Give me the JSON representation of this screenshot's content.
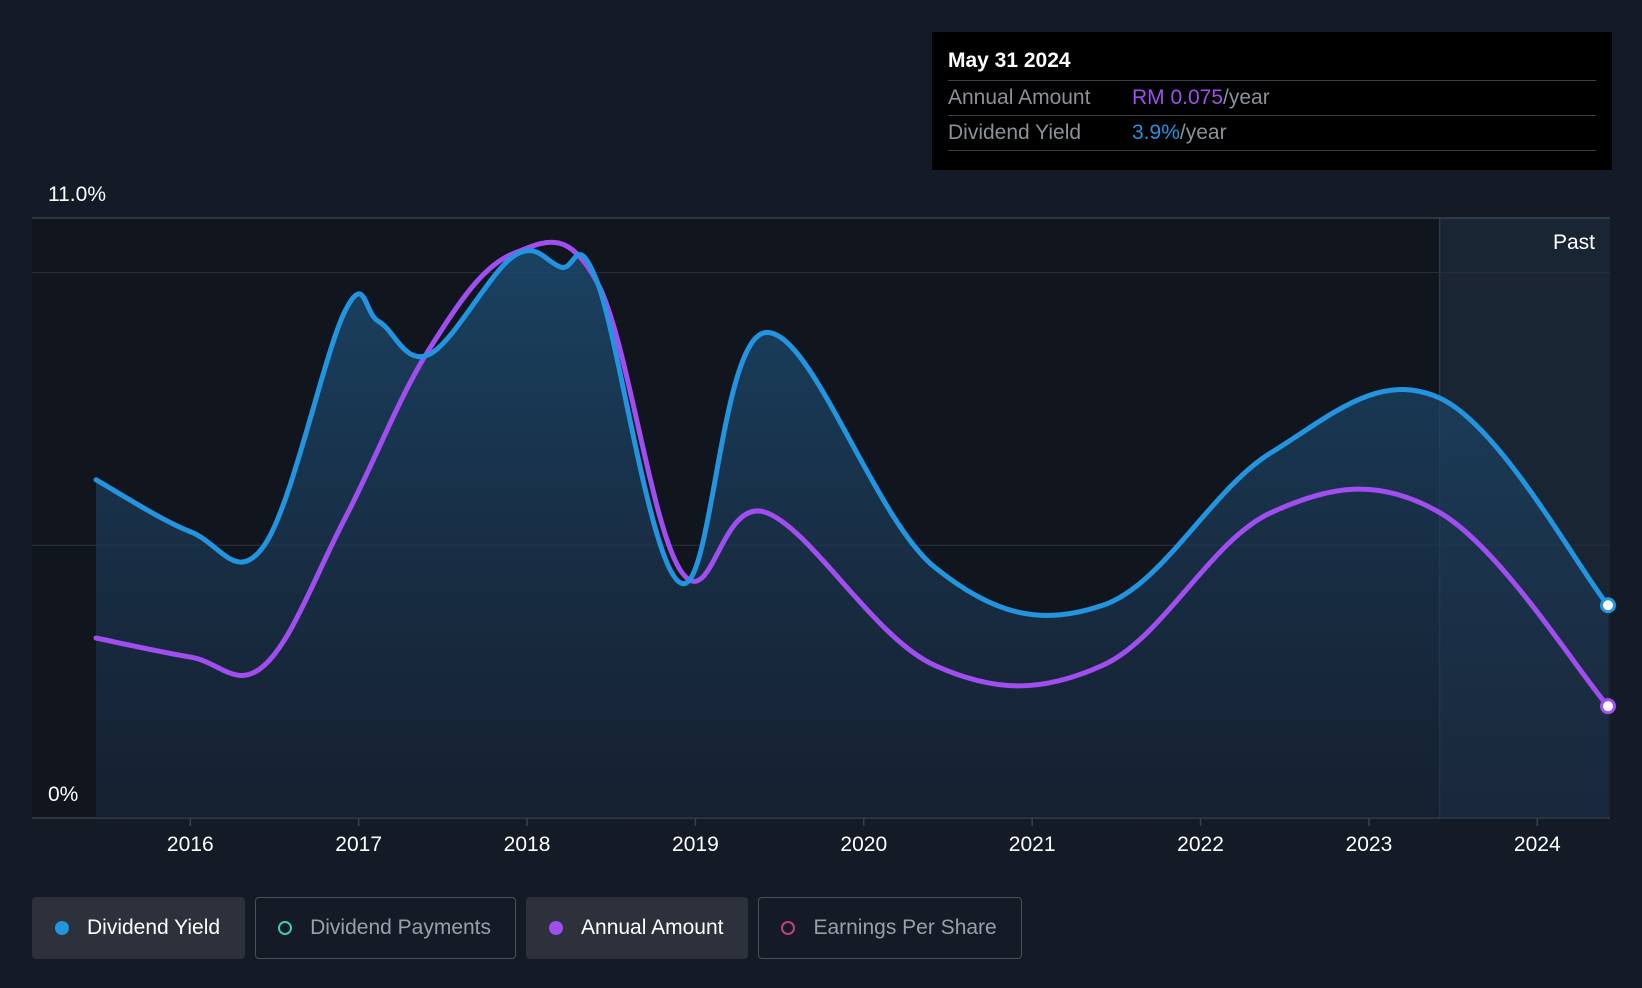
{
  "tooltip": {
    "date": "May 31 2024",
    "rows": [
      {
        "label": "Annual Amount",
        "value": "RM 0.075",
        "unit": "/year",
        "color": "#a04ef0"
      },
      {
        "label": "Dividend Yield",
        "value": "3.9%",
        "unit": "/year",
        "color": "#2394e0"
      }
    ]
  },
  "past_label": "Past",
  "legend": [
    {
      "label": "Dividend Yield",
      "active": true,
      "dot": "filled",
      "color": "#2394e0"
    },
    {
      "label": "Dividend Payments",
      "active": false,
      "dot": "hollow",
      "color": "#3ec9b9"
    },
    {
      "label": "Annual Amount",
      "active": true,
      "dot": "filled",
      "color": "#a04ef0"
    },
    {
      "label": "Earnings Per Share",
      "active": false,
      "dot": "hollow",
      "color": "#c0407a"
    }
  ],
  "chart_data": {
    "type": "line",
    "y_tick_labels": [
      "11.0%",
      "0%"
    ],
    "ylim": [
      0,
      11.0
    ],
    "xlim": [
      2015.44,
      2024.42
    ],
    "x_ticks": [
      2016,
      2017,
      2018,
      2019,
      2020,
      2021,
      2022,
      2023,
      2024
    ],
    "past_region_start": 2023.42,
    "grid": true,
    "series": [
      {
        "name": "Dividend Yield",
        "color": "#2394e0",
        "points": [
          [
            2015.44,
            6.2
          ],
          [
            2016.0,
            5.25
          ],
          [
            2016.44,
            5.0
          ],
          [
            2016.92,
            9.3
          ],
          [
            2017.12,
            9.1
          ],
          [
            2017.42,
            8.5
          ],
          [
            2017.92,
            10.3
          ],
          [
            2018.2,
            10.1
          ],
          [
            2018.42,
            9.8
          ],
          [
            2018.92,
            4.3
          ],
          [
            2019.42,
            8.9
          ],
          [
            2020.42,
            4.6
          ],
          [
            2021.42,
            3.9
          ],
          [
            2022.42,
            6.7
          ],
          [
            2023.42,
            7.7
          ],
          [
            2024.42,
            3.9
          ]
        ]
      },
      {
        "name": "Annual Amount",
        "color": "#a04ef0",
        "points": [
          [
            2015.44,
            3.3
          ],
          [
            2016.0,
            2.95
          ],
          [
            2016.44,
            2.8
          ],
          [
            2016.92,
            5.5
          ],
          [
            2017.42,
            8.6
          ],
          [
            2017.92,
            10.35
          ],
          [
            2018.42,
            9.8
          ],
          [
            2018.92,
            4.5
          ],
          [
            2019.42,
            5.6
          ],
          [
            2020.42,
            2.8
          ],
          [
            2021.42,
            2.8
          ],
          [
            2022.42,
            5.6
          ],
          [
            2023.42,
            5.6
          ],
          [
            2024.42,
            2.05
          ]
        ]
      }
    ]
  }
}
